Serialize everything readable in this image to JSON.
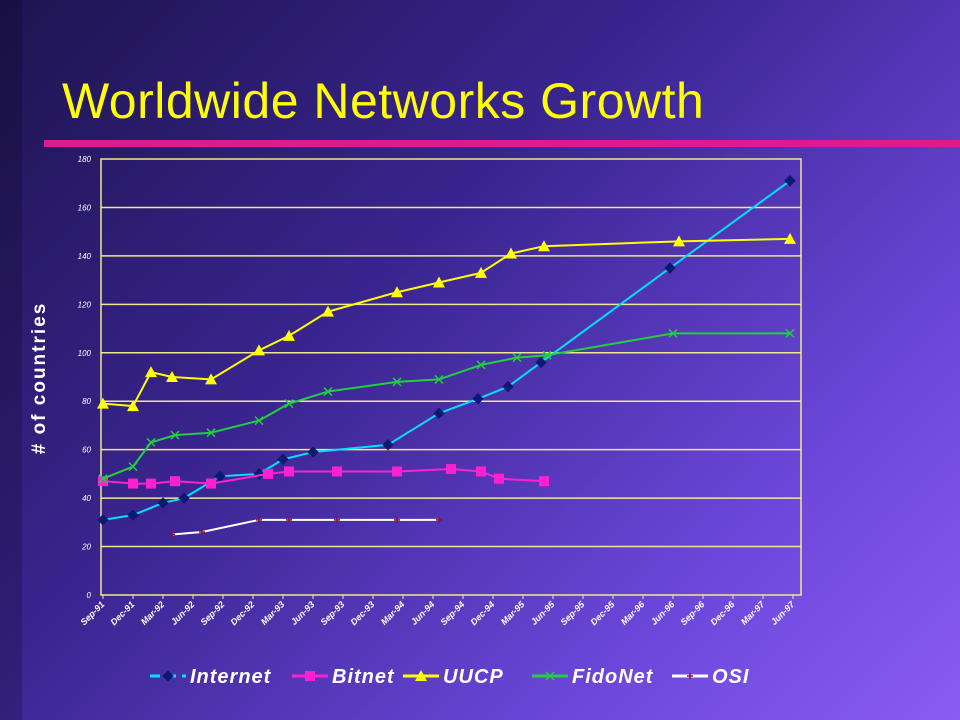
{
  "slide": {
    "title": "Worldwide Networks Growth"
  },
  "colors": {
    "title": "#ffff00",
    "rule": "#e0198c",
    "grid": "#f0e890",
    "axis_text": "#ffffff"
  },
  "chart_data": {
    "type": "line",
    "title": "",
    "ylabel": "# of countries",
    "xlabel": "",
    "ylim": [
      0,
      180
    ],
    "yticks": [
      0,
      20,
      40,
      60,
      80,
      100,
      120,
      140,
      160,
      180
    ],
    "categories": [
      "Sep-91",
      "Dec-91",
      "Mar-92",
      "Jun-92",
      "Sep-92",
      "Dec-92",
      "Mar-93",
      "Jun-93",
      "Sep-93",
      "Dec-93",
      "Mar-94",
      "Jun-94",
      "Sep-94",
      "Dec-94",
      "Mar-95",
      "Jun-95",
      "Sep-95",
      "Dec-95",
      "Mar-96",
      "Jun-96",
      "Sep-96",
      "Dec-96",
      "Mar-97",
      "Jun-97"
    ],
    "grid": true,
    "legend_position": "bottom",
    "series": [
      {
        "name": "Internet",
        "color": "#00e0ff",
        "marker": "diamond",
        "marker_color": "#0a1a70",
        "dash": "solid",
        "points": [
          [
            0,
            31
          ],
          [
            1,
            33
          ],
          [
            2,
            38
          ],
          [
            2.7,
            40
          ],
          [
            3.9,
            49
          ],
          [
            5.2,
            50
          ],
          [
            6,
            56
          ],
          [
            7,
            59
          ],
          [
            9.5,
            62
          ],
          [
            11.2,
            75
          ],
          [
            12.5,
            81
          ],
          [
            13.5,
            86
          ],
          [
            14.6,
            96
          ],
          [
            18.9,
            135
          ],
          [
            22.9,
            171
          ]
        ]
      },
      {
        "name": "Bitnet",
        "color": "#ff20d0",
        "marker": "square",
        "marker_color": "#ff20d0",
        "dash": "solid",
        "points": [
          [
            0,
            47
          ],
          [
            1,
            46
          ],
          [
            1.6,
            46
          ],
          [
            2.4,
            47
          ],
          [
            3.6,
            46
          ],
          [
            5.5,
            50
          ],
          [
            6.2,
            51
          ],
          [
            7.8,
            51
          ],
          [
            9.8,
            51
          ],
          [
            11.6,
            52
          ],
          [
            12.6,
            51
          ],
          [
            13.2,
            48
          ],
          [
            14.7,
            47
          ]
        ]
      },
      {
        "name": "UUCP",
        "color": "#ffff00",
        "marker": "triangle",
        "marker_color": "#ffff00",
        "dash": "solid",
        "points": [
          [
            0,
            79
          ],
          [
            1,
            78
          ],
          [
            1.6,
            92
          ],
          [
            2.3,
            90
          ],
          [
            3.6,
            89
          ],
          [
            5.2,
            101
          ],
          [
            6.2,
            107
          ],
          [
            7.5,
            117
          ],
          [
            9.8,
            125
          ],
          [
            11.2,
            129
          ],
          [
            12.6,
            133
          ],
          [
            13.6,
            141
          ],
          [
            14.7,
            144
          ],
          [
            19.2,
            146
          ],
          [
            22.9,
            147
          ]
        ]
      },
      {
        "name": "FidoNet",
        "color": "#20d040",
        "marker": "x",
        "marker_color": "#20d040",
        "dash": "solid",
        "points": [
          [
            0,
            48
          ],
          [
            1,
            53
          ],
          [
            1.6,
            63
          ],
          [
            2.4,
            66
          ],
          [
            3.6,
            67
          ],
          [
            5.2,
            72
          ],
          [
            6.2,
            79
          ],
          [
            7.5,
            84
          ],
          [
            9.8,
            88
          ],
          [
            11.2,
            89
          ],
          [
            12.6,
            95
          ],
          [
            13.8,
            98
          ],
          [
            14.8,
            99
          ],
          [
            19,
            108
          ],
          [
            22.9,
            108
          ]
        ]
      },
      {
        "name": "OSI",
        "color": "#ffffff",
        "marker": "plus",
        "marker_color": "#8a1040",
        "dash": "solid",
        "points": [
          [
            2.3,
            25
          ],
          [
            3.3,
            26
          ],
          [
            5.2,
            31
          ],
          [
            6.2,
            31
          ],
          [
            7.8,
            31
          ],
          [
            9.8,
            31
          ],
          [
            11.2,
            31
          ]
        ]
      }
    ]
  }
}
